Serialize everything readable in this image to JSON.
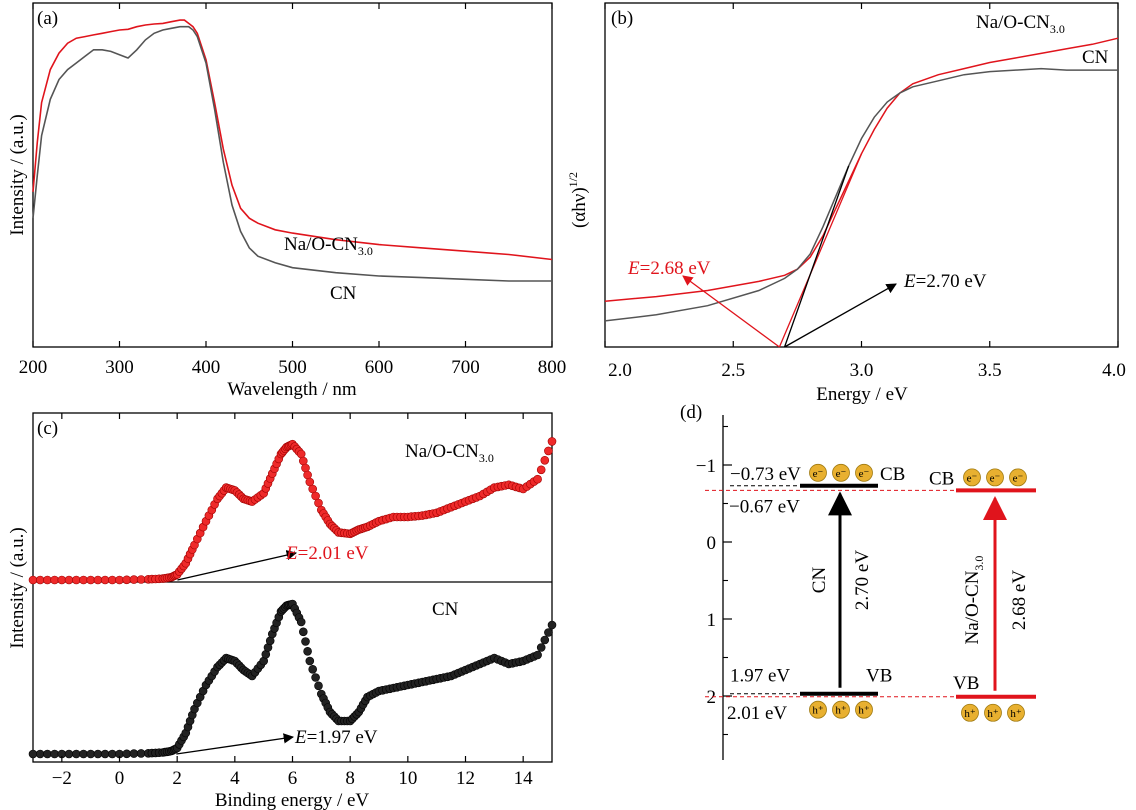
{
  "colors": {
    "red": "#e0141c",
    "gray": "#555555",
    "black": "#000000",
    "orb": "#e8b030"
  },
  "chart_data": [
    {
      "panel": "(a)",
      "type": "line",
      "xlabel": "Wavelength / nm",
      "ylabel": "Intensity / (a.u.)",
      "xlim": [
        200,
        800
      ],
      "xticks": [
        200,
        300,
        400,
        500,
        600,
        700,
        800
      ],
      "yticks_shown": false,
      "series": [
        {
          "name": "Na/O-CN3.0",
          "label_main": "Na/O-CN",
          "label_sub": "3.0",
          "color": "#e0141c",
          "x": [
            200,
            205,
            210,
            220,
            230,
            240,
            250,
            260,
            270,
            280,
            290,
            300,
            310,
            320,
            330,
            340,
            350,
            360,
            370,
            375,
            380,
            385,
            390,
            400,
            410,
            420,
            430,
            440,
            450,
            460,
            480,
            500,
            550,
            600,
            650,
            700,
            750,
            800
          ],
          "y": [
            0.47,
            0.62,
            0.74,
            0.84,
            0.89,
            0.92,
            0.935,
            0.94,
            0.945,
            0.95,
            0.955,
            0.96,
            0.962,
            0.97,
            0.975,
            0.978,
            0.98,
            0.985,
            0.99,
            0.99,
            0.98,
            0.97,
            0.95,
            0.87,
            0.74,
            0.6,
            0.49,
            0.42,
            0.39,
            0.375,
            0.355,
            0.345,
            0.325,
            0.31,
            0.3,
            0.29,
            0.28,
            0.265
          ]
        },
        {
          "name": "CN",
          "label_main": "CN",
          "label_sub": "",
          "color": "#555555",
          "x": [
            200,
            205,
            210,
            220,
            230,
            240,
            250,
            260,
            270,
            280,
            290,
            300,
            310,
            320,
            330,
            340,
            350,
            360,
            370,
            380,
            385,
            390,
            400,
            410,
            420,
            430,
            440,
            450,
            460,
            480,
            500,
            550,
            600,
            650,
            700,
            750,
            800
          ],
          "y": [
            0.39,
            0.52,
            0.64,
            0.75,
            0.81,
            0.84,
            0.86,
            0.88,
            0.9,
            0.9,
            0.895,
            0.885,
            0.875,
            0.9,
            0.93,
            0.95,
            0.96,
            0.965,
            0.97,
            0.97,
            0.96,
            0.94,
            0.86,
            0.72,
            0.56,
            0.43,
            0.35,
            0.3,
            0.275,
            0.255,
            0.24,
            0.225,
            0.215,
            0.21,
            0.205,
            0.2,
            0.2
          ]
        }
      ]
    },
    {
      "panel": "(b)",
      "type": "line",
      "xlabel": "Energy / eV",
      "ylabel_main": "(αhν)",
      "ylabel_sup": "1/2",
      "xlim": [
        2.0,
        4.0
      ],
      "xticks": [
        "2.0",
        "2.5",
        "3.0",
        "3.5",
        "4.0"
      ],
      "yticks_shown": false,
      "series": [
        {
          "name": "Na/O-CN3.0",
          "label_main": "Na/O-CN",
          "label_sub": "3.0",
          "color": "#e0141c",
          "x": [
            2.0,
            2.2,
            2.4,
            2.6,
            2.7,
            2.75,
            2.8,
            2.85,
            2.9,
            2.95,
            3.0,
            3.05,
            3.1,
            3.15,
            3.2,
            3.3,
            3.4,
            3.5,
            3.6,
            3.7,
            3.8,
            3.9,
            4.0
          ],
          "y": [
            0.085,
            0.1,
            0.12,
            0.15,
            0.17,
            0.19,
            0.23,
            0.3,
            0.39,
            0.48,
            0.57,
            0.65,
            0.72,
            0.77,
            0.8,
            0.83,
            0.85,
            0.87,
            0.885,
            0.9,
            0.915,
            0.93,
            0.95
          ]
        },
        {
          "name": "CN",
          "label_main": "CN",
          "label_sub": "",
          "color": "#555555",
          "x": [
            2.0,
            2.2,
            2.4,
            2.6,
            2.7,
            2.75,
            2.8,
            2.85,
            2.9,
            2.95,
            3.0,
            3.05,
            3.1,
            3.15,
            3.2,
            3.3,
            3.4,
            3.5,
            3.6,
            3.7,
            3.8,
            3.9,
            4.0
          ],
          "y": [
            0.02,
            0.04,
            0.07,
            0.12,
            0.16,
            0.19,
            0.24,
            0.33,
            0.43,
            0.53,
            0.62,
            0.69,
            0.74,
            0.77,
            0.79,
            0.81,
            0.83,
            0.84,
            0.845,
            0.85,
            0.845,
            0.845,
            0.845
          ]
        }
      ],
      "annotations": [
        {
          "prefix": "E",
          "text": "=2.68 eV",
          "color": "#e0141c",
          "value": 2.68
        },
        {
          "prefix": "E",
          "text": "=2.70 eV",
          "color": "#000000",
          "value": 2.7
        }
      ]
    },
    {
      "panel": "(c)",
      "type": "scatter",
      "xlabel": "Binding energy / eV",
      "ylabel": "Intensity / (a.u.)",
      "xlim": [
        -3,
        15
      ],
      "xticks": [
        -2,
        0,
        2,
        4,
        6,
        8,
        10,
        12,
        14
      ],
      "yticks_shown": false,
      "series": [
        {
          "name": "Na/O-CN3.0",
          "label_main": "Na/O-CN",
          "label_sub": "3.0",
          "color": "#e0141c",
          "x": [
            -3,
            -2,
            -1,
            0,
            1,
            1.5,
            1.8,
            2.0,
            2.3,
            2.6,
            3.0,
            3.4,
            3.7,
            4.0,
            4.3,
            4.6,
            5.0,
            5.3,
            5.6,
            5.8,
            6.0,
            6.3,
            6.6,
            7.0,
            7.3,
            7.6,
            8.0,
            8.3,
            8.6,
            9.0,
            9.5,
            10.0,
            10.5,
            11.0,
            11.5,
            12.0,
            12.5,
            13.0,
            13.5,
            14.0,
            14.5,
            15.0
          ],
          "y": [
            0.0,
            0.0,
            0.0,
            0.0,
            0.005,
            0.01,
            0.02,
            0.04,
            0.12,
            0.25,
            0.42,
            0.58,
            0.66,
            0.64,
            0.58,
            0.56,
            0.62,
            0.76,
            0.9,
            0.95,
            0.97,
            0.9,
            0.7,
            0.5,
            0.4,
            0.34,
            0.33,
            0.36,
            0.38,
            0.42,
            0.45,
            0.45,
            0.46,
            0.48,
            0.52,
            0.56,
            0.6,
            0.66,
            0.68,
            0.65,
            0.72,
            0.99
          ]
        },
        {
          "name": "CN",
          "label_main": "CN",
          "label_sub": "",
          "color": "#000000",
          "x": [
            -3,
            -2,
            -1,
            0,
            1,
            1.5,
            1.8,
            2.0,
            2.3,
            2.6,
            3.0,
            3.4,
            3.7,
            4.0,
            4.3,
            4.6,
            5.0,
            5.3,
            5.6,
            5.8,
            6.0,
            6.3,
            6.6,
            7.0,
            7.3,
            7.6,
            8.0,
            8.3,
            8.6,
            9.0,
            9.5,
            10.0,
            10.5,
            11.0,
            11.5,
            12.0,
            12.5,
            13.0,
            13.5,
            14.0,
            14.5,
            15.0
          ],
          "y": [
            0.0,
            0.0,
            0.0,
            0.0,
            0.005,
            0.01,
            0.02,
            0.04,
            0.14,
            0.3,
            0.46,
            0.58,
            0.64,
            0.62,
            0.56,
            0.52,
            0.62,
            0.8,
            0.95,
            0.99,
            1.0,
            0.88,
            0.62,
            0.4,
            0.28,
            0.22,
            0.22,
            0.28,
            0.38,
            0.42,
            0.44,
            0.46,
            0.48,
            0.5,
            0.52,
            0.56,
            0.6,
            0.64,
            0.6,
            0.62,
            0.66,
            0.86
          ]
        }
      ],
      "annotations": [
        {
          "prefix": "E",
          "text": "=2.01 eV",
          "color": "#e0141c",
          "value": 2.01
        },
        {
          "prefix": "E",
          "text": "=1.97 eV",
          "color": "#000000",
          "value": 1.97
        }
      ]
    },
    {
      "panel": "(d)",
      "type": "band_diagram",
      "ylim": [
        -1.5,
        2.7
      ],
      "yticks": [
        "−1",
        "0",
        "1",
        "2"
      ],
      "materials": [
        {
          "name": "CN",
          "color": "#000000",
          "cb": -0.73,
          "vb": 1.97,
          "cb_label": "−0.73 eV",
          "vb_label": "1.97 eV",
          "gap_label": "2.70 eV",
          "cb_tag": "CB",
          "vb_tag": "VB",
          "vertical_label": "CN",
          "vertical_sub": ""
        },
        {
          "name": "Na/O-CN3.0",
          "color": "#e0141c",
          "cb": -0.67,
          "vb": 2.01,
          "cb_label": "−0.67 eV",
          "vb_label": "2.01 eV",
          "gap_label": "2.68 eV",
          "cb_tag": "CB",
          "vb_tag": "VB",
          "vertical_label": "Na/O-CN",
          "vertical_sub": "3.0"
        }
      ],
      "electron": "e⁻",
      "hole": "h⁺"
    }
  ]
}
